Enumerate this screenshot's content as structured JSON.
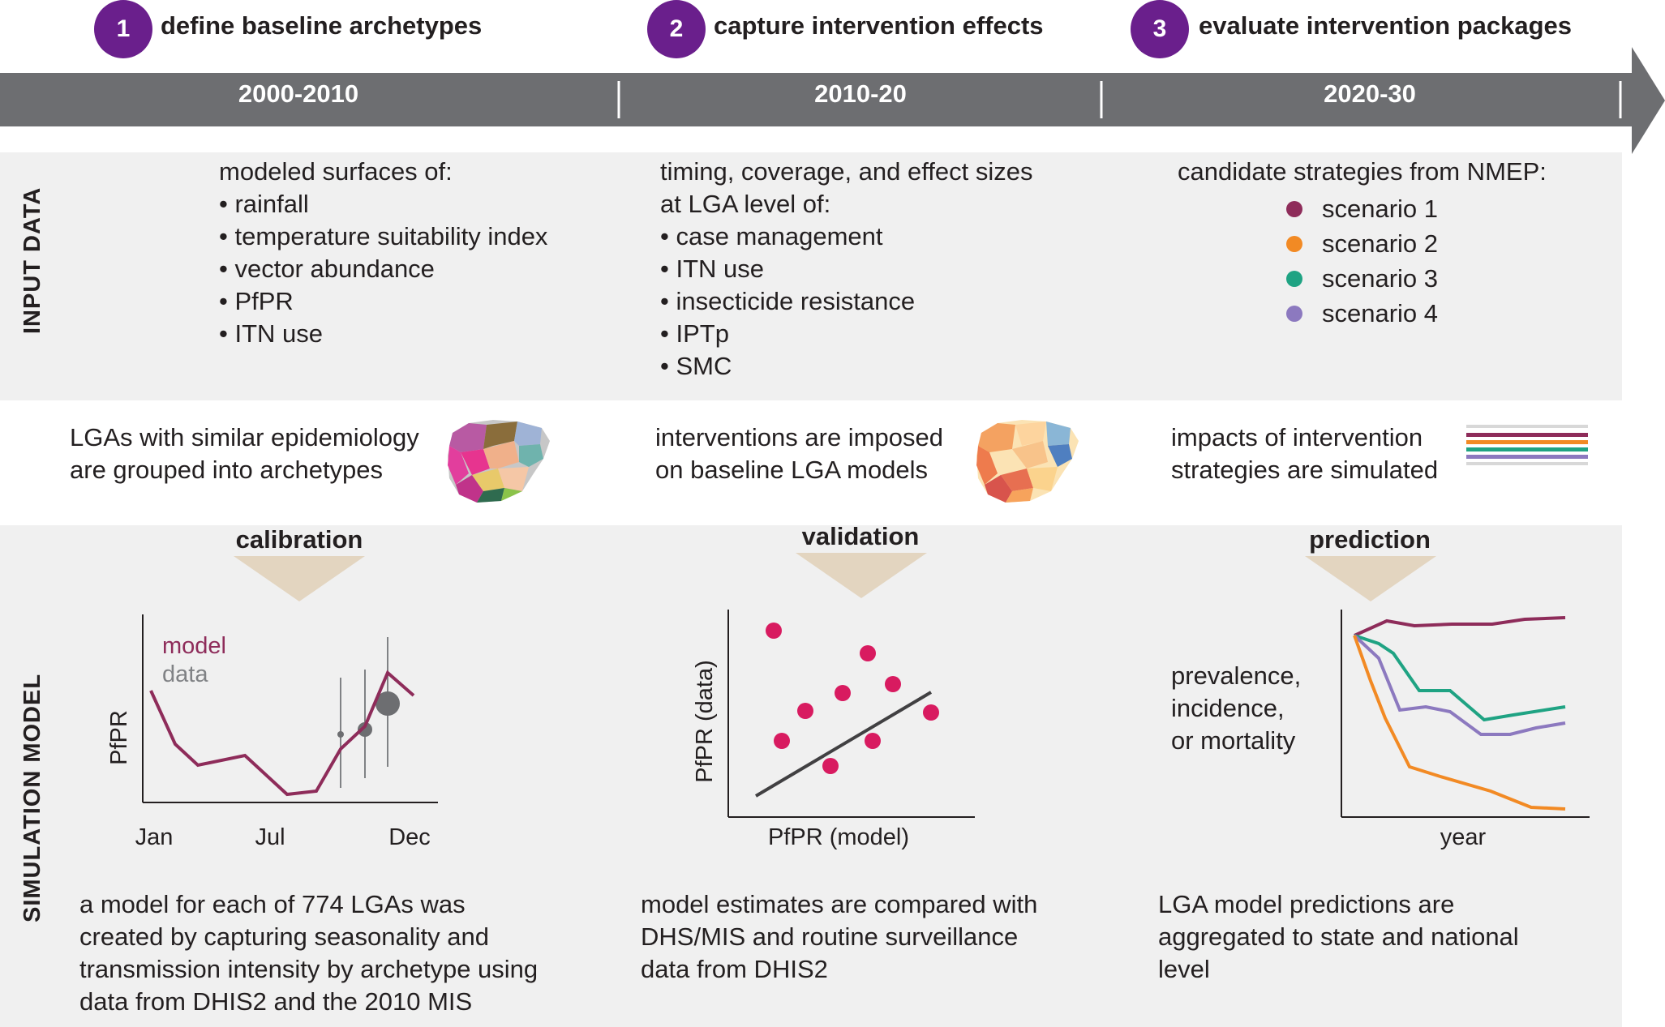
{
  "steps": [
    {
      "number": "1",
      "title": "define baseline archetypes"
    },
    {
      "number": "2",
      "title": "capture intervention effects"
    },
    {
      "number": "3",
      "title": "evaluate intervention packages"
    }
  ],
  "periods": [
    "2000-2010",
    "2010-20",
    "2020-30"
  ],
  "section_labels": {
    "input": "INPUT DATA",
    "simulation": "SIMULATION MODEL"
  },
  "input": {
    "col1": {
      "heading": "modeled surfaces of:",
      "items": [
        "• rainfall",
        "• temperature suitability index",
        "• vector abundance",
        "• PfPR",
        "• ITN use"
      ]
    },
    "col2": {
      "heading1": "timing, coverage, and effect sizes",
      "heading2": "at LGA level of:",
      "items": [
        "• case management",
        "• ITN use",
        "• insecticide resistance",
        "• IPTp",
        "• SMC"
      ]
    },
    "col3": {
      "heading": "candidate strategies from NMEP:",
      "scenarios": [
        {
          "label": "scenario 1",
          "color": "#8e2c5a"
        },
        {
          "label": "scenario 2",
          "color": "#f28a24"
        },
        {
          "label": "scenario 3",
          "color": "#1fa383"
        },
        {
          "label": "scenario 4",
          "color": "#8c79bf"
        }
      ]
    }
  },
  "middle": {
    "col1": [
      "LGAs with similar epidemiology",
      "are grouped into archetypes"
    ],
    "col2": [
      "interventions are imposed",
      "on baseline LGA models"
    ],
    "col3": [
      "impacts of intervention",
      "strategies are simulated"
    ]
  },
  "stages": [
    "calibration",
    "validation",
    "prediction"
  ],
  "chart1": {
    "ylabel": "PfPR",
    "legend_model": "model",
    "legend_data": "data",
    "xticks": [
      "Jan",
      "Jul",
      "Dec"
    ],
    "model_color": "#8e2c5a",
    "data_color": "#6d6e71"
  },
  "chart2": {
    "ylabel": "PfPR (data)",
    "xlabel": "PfPR (model)",
    "point_color": "#d81b60"
  },
  "chart3": {
    "ylabel": [
      "prevalence,",
      "incidence,",
      "or mortality"
    ],
    "xlabel": "year"
  },
  "descriptions": {
    "col1": [
      "a model for each of 774 LGAs was",
      "created by capturing seasonality and",
      "transmission intensity by archetype using",
      "data from DHIS2 and the 2010 MIS"
    ],
    "col2": [
      "model estimates are compared with",
      "DHS/MIS and routine surveillance",
      "data from DHIS2"
    ],
    "col3": [
      "LGA model predictions are",
      "aggregated to state and national",
      "level"
    ]
  },
  "colors": {
    "purple": "#6a1f8c",
    "arrow_gray": "#6d6e71",
    "band": "#f0f0f0",
    "stage_arrow": "#e3d5c0"
  }
}
